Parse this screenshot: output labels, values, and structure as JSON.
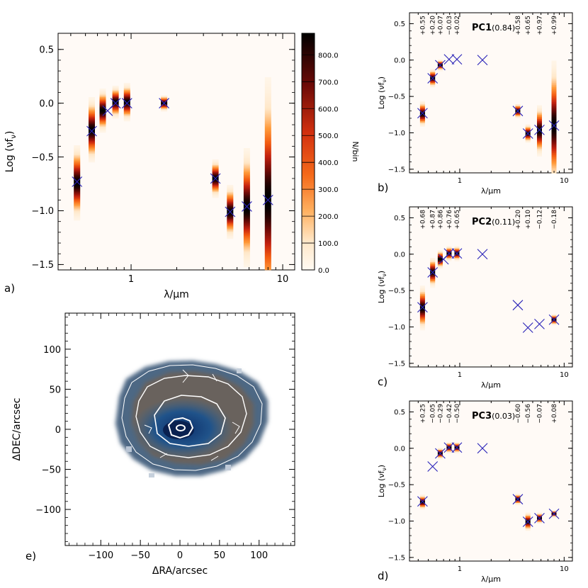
{
  "chart_data": [
    {
      "panel": "a)",
      "type": "heatmap",
      "xlabel": "λ/μm",
      "ylabel": "Log (νf_ν)",
      "xscale": "log",
      "xlim": [
        0.33,
        12
      ],
      "ylim": [
        -1.55,
        0.65
      ],
      "x_ticks": [
        {
          "v": 1,
          "label": "1"
        },
        {
          "v": 10,
          "label": "10"
        }
      ],
      "y_ticks": [
        {
          "v": 0.5,
          "label": "0.5"
        },
        {
          "v": 0.0,
          "label": "0.0"
        },
        {
          "v": -0.5,
          "label": "-0.5"
        },
        {
          "v": -1.0,
          "label": "-1.0"
        },
        {
          "v": -1.5,
          "label": "-1.5"
        }
      ],
      "colorbar": {
        "label": "N/bin",
        "range": [
          0,
          880
        ],
        "ticks": [
          {
            "v": 800,
            "label": "800.0"
          },
          {
            "v": 700,
            "label": "700.0"
          },
          {
            "v": 600,
            "label": "600.0"
          },
          {
            "v": 500,
            "label": "500.0"
          },
          {
            "v": 400,
            "label": "400.0"
          },
          {
            "v": 300,
            "label": "300.0"
          },
          {
            "v": 200,
            "label": "200.0"
          },
          {
            "v": 100,
            "label": "100.0"
          },
          {
            "v": 0,
            "label": "0.0"
          }
        ],
        "colors": [
          "#fffaf3",
          "#ffe7c8",
          "#ff9a3a",
          "#f25a10",
          "#c2200f",
          "#6d0a07",
          "#000000"
        ]
      },
      "bands": [
        {
          "x": 0.44,
          "center": -0.74,
          "spread": 0.14
        },
        {
          "x": 0.55,
          "center": -0.25,
          "spread": 0.12
        },
        {
          "x": 0.65,
          "center": -0.07,
          "spread": 0.08
        },
        {
          "x": 0.79,
          "center": 0.01,
          "spread": 0.06
        },
        {
          "x": 0.94,
          "center": 0.01,
          "spread": 0.07
        },
        {
          "x": 1.65,
          "center": 0.0,
          "spread": 0.03
        },
        {
          "x": 3.6,
          "center": -0.7,
          "spread": 0.07
        },
        {
          "x": 4.5,
          "center": -1.01,
          "spread": 0.1
        },
        {
          "x": 5.8,
          "center": -0.97,
          "spread": 0.22
        },
        {
          "x": 8.0,
          "center": -0.9,
          "spread": 0.45
        }
      ],
      "markers": [
        {
          "x": 0.44,
          "y": -0.73
        },
        {
          "x": 0.55,
          "y": -0.26
        },
        {
          "x": 0.7,
          "y": -0.07
        },
        {
          "x": 0.79,
          "y": 0.0
        },
        {
          "x": 0.94,
          "y": 0.0
        },
        {
          "x": 1.65,
          "y": 0.0
        },
        {
          "x": 3.6,
          "y": -0.7
        },
        {
          "x": 4.5,
          "y": -1.01
        },
        {
          "x": 5.8,
          "y": -0.96
        },
        {
          "x": 8.0,
          "y": -0.9
        }
      ]
    },
    {
      "panel": "b)",
      "type": "heatmap",
      "title": "PC1",
      "variance": "(0.84)",
      "xlabel": "λ/μm",
      "ylabel": "Log (νf_ν)",
      "xscale": "log",
      "xlim": [
        0.33,
        12
      ],
      "ylim": [
        -1.55,
        0.65
      ],
      "x_ticks": [
        {
          "v": 1,
          "label": "1"
        },
        {
          "v": 10,
          "label": "10"
        }
      ],
      "y_ticks": [
        {
          "v": 0.5,
          "label": "0.5"
        },
        {
          "v": 0.0,
          "label": "0.0"
        },
        {
          "v": -0.5,
          "label": "-0.5"
        },
        {
          "v": -1.0,
          "label": "-1.0"
        },
        {
          "v": -1.5,
          "label": "-1.5"
        }
      ],
      "coefficients": [
        "+0.55",
        "+0.20",
        "+0.07",
        "-0.03",
        "+0.02",
        "+0.58",
        "+0.65",
        "+0.97",
        "+0.99"
      ],
      "bands": [
        {
          "x": 0.44,
          "center": -0.74,
          "spread": 0.07
        },
        {
          "x": 0.55,
          "center": -0.25,
          "spread": 0.05
        },
        {
          "x": 0.65,
          "center": -0.07,
          "spread": 0.03
        },
        {
          "x": 3.6,
          "center": -0.7,
          "spread": 0.04
        },
        {
          "x": 4.5,
          "center": -1.01,
          "spread": 0.05
        },
        {
          "x": 5.8,
          "center": -0.97,
          "spread": 0.14
        },
        {
          "x": 8.0,
          "center": -0.9,
          "spread": 0.35
        }
      ],
      "markers": [
        {
          "x": 0.44,
          "y": -0.73
        },
        {
          "x": 0.55,
          "y": -0.25
        },
        {
          "x": 0.65,
          "y": -0.07
        },
        {
          "x": 0.79,
          "y": 0.01
        },
        {
          "x": 0.94,
          "y": 0.01
        },
        {
          "x": 1.65,
          "y": 0.0
        },
        {
          "x": 3.6,
          "y": -0.7
        },
        {
          "x": 4.5,
          "y": -1.01
        },
        {
          "x": 5.8,
          "y": -0.96
        },
        {
          "x": 8.0,
          "y": -0.9
        }
      ]
    },
    {
      "panel": "c)",
      "type": "heatmap",
      "title": "PC2",
      "variance": "(0.11)",
      "xlabel": "λ/μm",
      "ylabel": "Log (νf_ν)",
      "xscale": "log",
      "xlim": [
        0.33,
        12
      ],
      "ylim": [
        -1.55,
        0.65
      ],
      "x_ticks": [
        {
          "v": 1,
          "label": "1"
        },
        {
          "v": 10,
          "label": "10"
        }
      ],
      "y_ticks": [
        {
          "v": 0.5,
          "label": "0.5"
        },
        {
          "v": 0.0,
          "label": "0.0"
        },
        {
          "v": -0.5,
          "label": "-0.5"
        },
        {
          "v": -1.0,
          "label": "-1.0"
        },
        {
          "v": -1.5,
          "label": "-1.5"
        }
      ],
      "coefficients": [
        "+0.68",
        "+0.87",
        "+0.86",
        "+0.76",
        "+0.65",
        "+0.20",
        "+0.10",
        "-0.12",
        "-0.18"
      ],
      "bands": [
        {
          "x": 0.44,
          "center": -0.74,
          "spread": 0.12
        },
        {
          "x": 0.55,
          "center": -0.25,
          "spread": 0.08
        },
        {
          "x": 0.65,
          "center": -0.07,
          "spread": 0.05
        },
        {
          "x": 0.79,
          "center": 0.01,
          "spread": 0.04
        },
        {
          "x": 0.94,
          "center": 0.01,
          "spread": 0.04
        },
        {
          "x": 8.0,
          "center": -0.9,
          "spread": 0.03
        }
      ],
      "markers": [
        {
          "x": 0.44,
          "y": -0.73
        },
        {
          "x": 0.55,
          "y": -0.25
        },
        {
          "x": 0.7,
          "y": -0.07
        },
        {
          "x": 0.79,
          "y": 0.01
        },
        {
          "x": 0.94,
          "y": 0.01
        },
        {
          "x": 1.65,
          "y": 0.0
        },
        {
          "x": 3.6,
          "y": -0.7
        },
        {
          "x": 4.5,
          "y": -1.01
        },
        {
          "x": 5.8,
          "y": -0.96
        },
        {
          "x": 8.0,
          "y": -0.9
        }
      ]
    },
    {
      "panel": "d)",
      "type": "heatmap",
      "title": "PC3",
      "variance": "(0.03)",
      "xlabel": "λ/μm",
      "ylabel": "Log (νf_ν)",
      "xscale": "log",
      "xlim": [
        0.33,
        12
      ],
      "ylim": [
        -1.55,
        0.65
      ],
      "x_ticks": [
        {
          "v": 1,
          "label": "1"
        },
        {
          "v": 10,
          "label": "10"
        }
      ],
      "y_ticks": [
        {
          "v": 0.5,
          "label": "0.5"
        },
        {
          "v": 0.0,
          "label": "0.0"
        },
        {
          "v": -0.5,
          "label": "-0.5"
        },
        {
          "v": -1.0,
          "label": "-1.0"
        },
        {
          "v": -1.5,
          "label": "-1.5"
        }
      ],
      "coefficients": [
        "+0.25",
        "-0.05",
        "-0.29",
        "-0.42",
        "-0.50",
        "-0.60",
        "-0.56",
        "-0.07",
        "+0.08"
      ],
      "bands": [
        {
          "x": 0.44,
          "center": -0.74,
          "spread": 0.04
        },
        {
          "x": 0.65,
          "center": -0.07,
          "spread": 0.03
        },
        {
          "x": 0.79,
          "center": 0.01,
          "spread": 0.03
        },
        {
          "x": 0.94,
          "center": 0.01,
          "spread": 0.03
        },
        {
          "x": 3.6,
          "center": -0.7,
          "spread": 0.03
        },
        {
          "x": 4.5,
          "center": -1.01,
          "spread": 0.05
        },
        {
          "x": 5.8,
          "center": -0.96,
          "spread": 0.03
        },
        {
          "x": 8.0,
          "center": -0.9,
          "spread": 0.02
        }
      ],
      "markers": [
        {
          "x": 0.44,
          "y": -0.73
        },
        {
          "x": 0.55,
          "y": -0.25
        },
        {
          "x": 0.65,
          "y": -0.07
        },
        {
          "x": 0.79,
          "y": 0.01
        },
        {
          "x": 0.94,
          "y": 0.01
        },
        {
          "x": 1.65,
          "y": 0.0
        },
        {
          "x": 3.6,
          "y": -0.7
        },
        {
          "x": 4.5,
          "y": -1.01
        },
        {
          "x": 5.8,
          "y": -0.96
        },
        {
          "x": 8.0,
          "y": -0.9
        }
      ]
    },
    {
      "panel": "e)",
      "type": "map",
      "xlabel": "ΔRA/arcsec",
      "ylabel": "ΔDEC/arcsec",
      "xlim": [
        -145,
        145
      ],
      "ylim": [
        -145,
        145
      ],
      "x_ticks": [
        {
          "v": -100,
          "label": "-100"
        },
        {
          "v": -50,
          "label": "-50"
        },
        {
          "v": 0,
          "label": "0"
        },
        {
          "v": 50,
          "label": "50"
        },
        {
          "v": 100,
          "label": "100"
        }
      ],
      "y_ticks": [
        {
          "v": 100,
          "label": "100"
        },
        {
          "v": 50,
          "label": "50"
        },
        {
          "v": 0,
          "label": "0"
        },
        {
          "v": -50,
          "label": "-50"
        },
        {
          "v": -100,
          "label": "-100"
        }
      ],
      "marker_color": "#2a22b8"
    }
  ]
}
